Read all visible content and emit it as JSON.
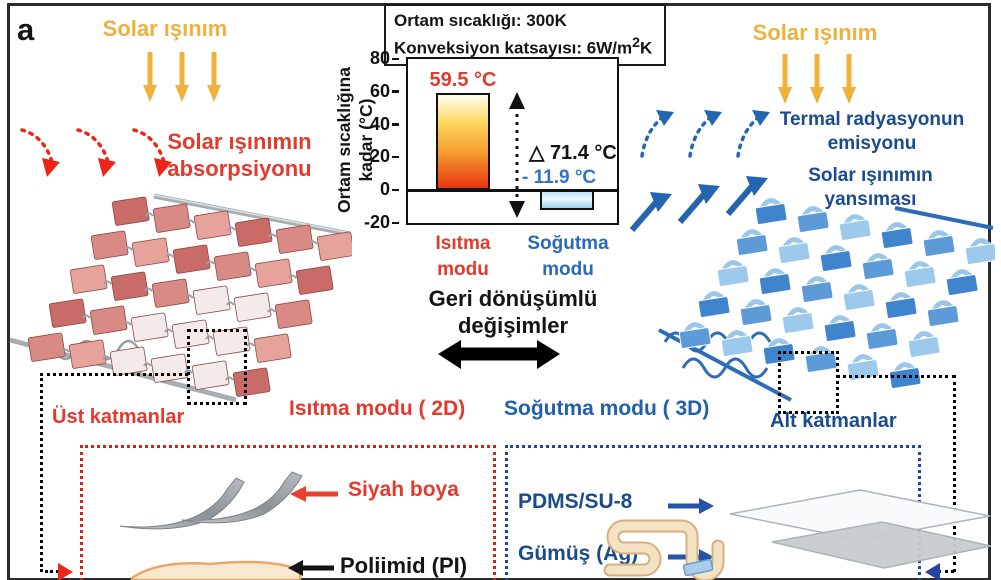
{
  "panel_label": "a",
  "colors": {
    "solar_gold": "#EDB13F",
    "heating_red": "#E23B2E",
    "bright_red_arrow": "#EE2418",
    "red_dotted": "#D02318",
    "cooling_navy": "#1B4B8F",
    "cooling_steel_blue": "#2061A8",
    "blue_arrow": "#2565B0",
    "blue_dotted": "#2742A0",
    "bar_heating_main": "#E8350F",
    "bar_cooling_main": "#9CD2EF"
  },
  "left": {
    "solar_label": "Solar ışınım",
    "absorption_line1": "Solar ışınımın",
    "absorption_line2": "absorpsiyonu",
    "top_layers_label": "Üst katmanlar",
    "black_paint_label": "Siyah boya",
    "polyimide_label": "Poliimid (PI)"
  },
  "right": {
    "solar_label": "Solar ışınım",
    "thermal_emission_line1": "Termal radyasyonun",
    "thermal_emission_line2": "emisyonu",
    "reflection_line1": "Solar ışınımın",
    "reflection_line2": "yansıması",
    "bottom_layers_label": "Alt katmanlar",
    "pdms_label": "PDMS/SU-8",
    "silver_label": "Gümüş (Ag)"
  },
  "center": {
    "reversible_line1": "Geri dönüşümlü",
    "reversible_line2": "değişimler",
    "heating_mode_2d": "Isıtma modu ( 2D)",
    "cooling_mode_3d": "Soğutma modu ( 3D)"
  },
  "chart_data": {
    "type": "bar",
    "title": "",
    "conditions": {
      "line1": "Ortam sıcaklığı: 300K",
      "line2_prefix": "Konveksiyon katsayısı: 6W/m",
      "line2_sup": "2",
      "line2_suffix": "K"
    },
    "ylabel_line1": "Ortam sıcaklığına",
    "ylabel_line2": "kadar (°C)",
    "ylim": [
      -20,
      80
    ],
    "yticks": [
      80,
      60,
      40,
      20,
      0,
      -20
    ],
    "categories": [
      "Isıtma modu",
      "Soğutma modu"
    ],
    "category_lines": [
      [
        "Isıtma",
        "modu"
      ],
      [
        "Soğutma",
        "modu"
      ]
    ],
    "values": [
      59.5,
      -11.9
    ],
    "bar_labels": [
      "59.5 °C",
      "- 11.9 °C"
    ],
    "delta_label": "△ 71.4 °C",
    "bar_colors": [
      "#E8350F",
      "#9CD2EF"
    ],
    "grid": false,
    "legend": false
  }
}
